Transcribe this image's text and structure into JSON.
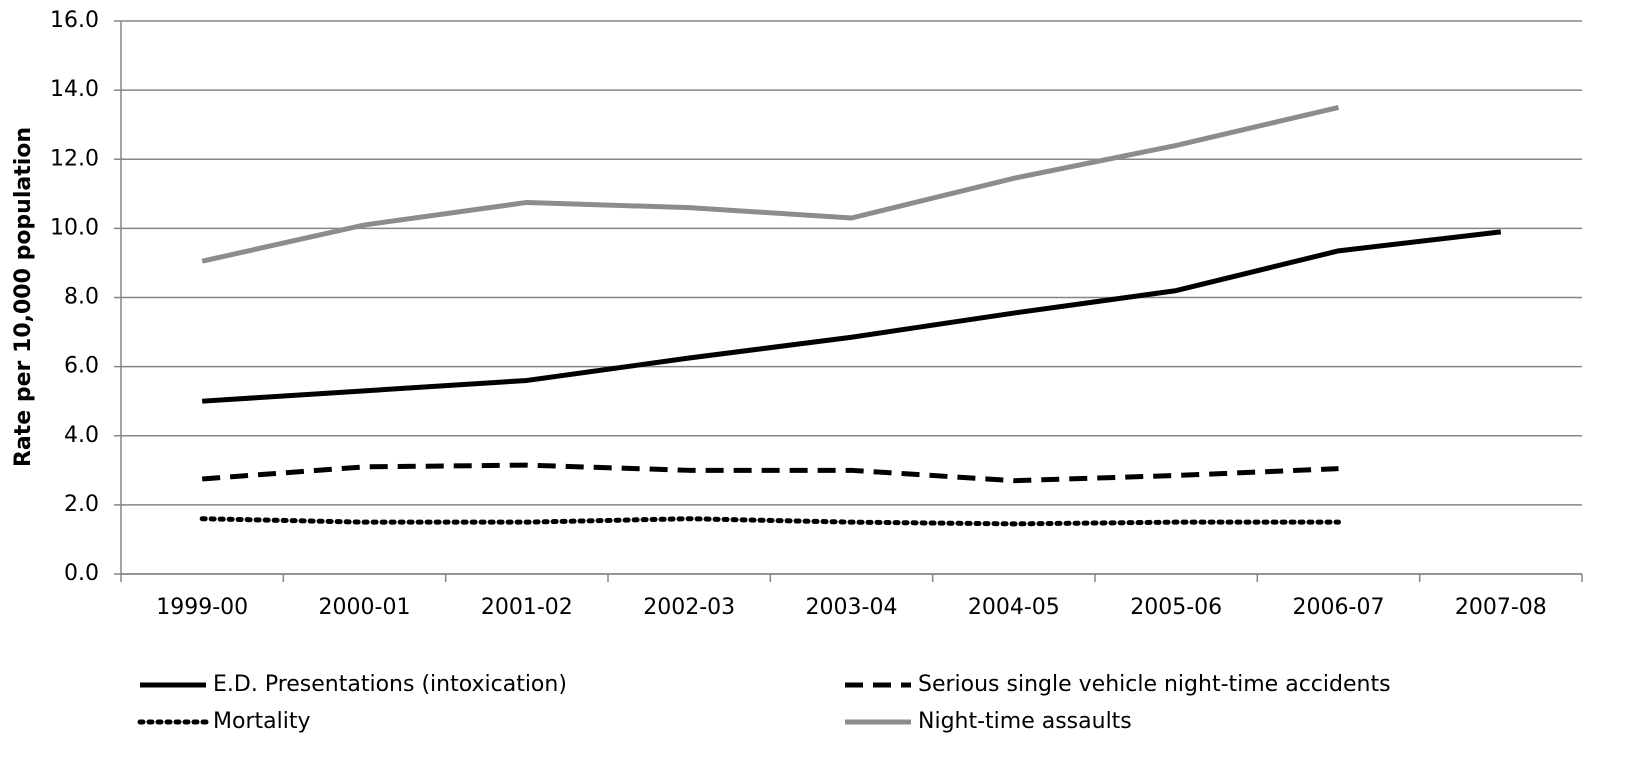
{
  "chart_data": {
    "type": "line",
    "y_label": "Rate per 10,000 population",
    "categories": [
      "1999-00",
      "2000-01",
      "2001-02",
      "2002-03",
      "2003-04",
      "2004-05",
      "2005-06",
      "2006-07",
      "2007-08"
    ],
    "series": [
      {
        "name": "E.D. Presentations (intoxication)",
        "color": "#000000",
        "dash": "solid",
        "values": [
          5.0,
          5.3,
          5.6,
          6.25,
          6.85,
          7.55,
          8.2,
          9.35,
          9.9
        ]
      },
      {
        "name": "Serious single vehicle night-time accidents",
        "color": "#000000",
        "dash": "dashed",
        "values": [
          2.75,
          3.1,
          3.15,
          3.0,
          3.0,
          2.7,
          2.85,
          3.05,
          null
        ]
      },
      {
        "name": "Mortality",
        "color": "#000000",
        "dash": "dotted",
        "values": [
          1.6,
          1.5,
          1.5,
          1.6,
          1.5,
          1.45,
          1.5,
          1.5,
          null
        ]
      },
      {
        "name": "Night-time assaults",
        "color": "#8c8c8c",
        "dash": "solid",
        "values": [
          9.05,
          10.1,
          10.75,
          10.6,
          10.3,
          11.45,
          12.4,
          13.5,
          null
        ]
      }
    ],
    "ylim": [
      0,
      16
    ],
    "yticks": [
      {
        "value": 0,
        "label": "0.0"
      },
      {
        "value": 2,
        "label": "2.0"
      },
      {
        "value": 4,
        "label": "4.0"
      },
      {
        "value": 6,
        "label": "6.0"
      },
      {
        "value": 8,
        "label": "8.0"
      },
      {
        "value": 10,
        "label": "10.0"
      },
      {
        "value": 12,
        "label": "12.0"
      },
      {
        "value": 14,
        "label": "14.0"
      },
      {
        "value": 16,
        "label": "16.0"
      }
    ],
    "grid": true,
    "legend": "bottom"
  }
}
